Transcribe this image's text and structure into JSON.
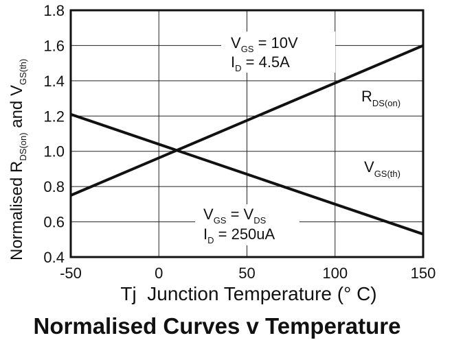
{
  "chart_data": {
    "type": "line",
    "title": "Normalised Curves v Temperature",
    "xlabel": "Tj  Junction Temperature (° C)",
    "ylabel_parts": [
      "Normalised R",
      "DS(on)",
      " and V",
      "GS(th)"
    ],
    "xlim": [
      -50,
      150
    ],
    "ylim": [
      0.4,
      1.8
    ],
    "xticks": [
      "-50",
      "0",
      "50",
      "100",
      "150"
    ],
    "yticks": [
      "0.4",
      "0.6",
      "0.8",
      "1.0",
      "1.2",
      "1.4",
      "1.6",
      "1.8"
    ],
    "grid": true,
    "series": [
      {
        "name_main": "R",
        "name_sub": "DS(on)",
        "x": [
          -50,
          150
        ],
        "y": [
          0.75,
          1.6
        ]
      },
      {
        "name_main": "V",
        "name_sub": "GS(th)",
        "x": [
          -50,
          150
        ],
        "y": [
          1.21,
          0.53
        ]
      }
    ],
    "annotations": {
      "top": {
        "l1": [
          "V",
          "GS",
          " =  10V"
        ],
        "l2": [
          "I",
          "D",
          " =  4.5A"
        ]
      },
      "bottom": {
        "l1": [
          "V",
          "GS",
          " =  V",
          "DS"
        ],
        "l2": [
          "I",
          "D",
          " =  250uA"
        ]
      }
    }
  }
}
